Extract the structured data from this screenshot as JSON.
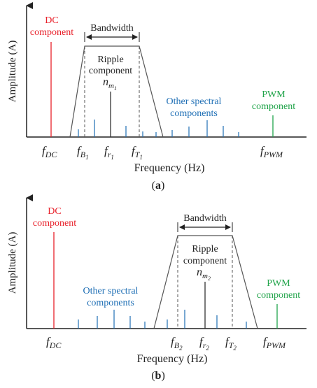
{
  "colors": {
    "dc": "#e8202a",
    "blue": "#1f6fb5",
    "green": "#21a44a",
    "black": "#222222",
    "gray": "#444444"
  },
  "panels": [
    {
      "id": "a",
      "caption": "a",
      "ylabel": "Amplitude (A)",
      "xlabel": "Frequency (Hz)",
      "bandwidth_label": "Bandwidth",
      "labels": {
        "dc": [
          "DC",
          "component"
        ],
        "ripple": [
          "Ripple",
          "component"
        ],
        "ripple_symbol": {
          "base": "n",
          "sub": "m",
          "subsub": "1"
        },
        "other": [
          "Other spectral",
          "components"
        ],
        "pwm": [
          "PWM",
          "component"
        ]
      },
      "ticks": [
        {
          "base": "f",
          "sub": "DC"
        },
        {
          "base": "f",
          "sub": "B",
          "subsub": "1"
        },
        {
          "base": "f",
          "sub": "r",
          "subsub": "1"
        },
        {
          "base": "f",
          "sub": "T",
          "subsub": "1"
        },
        {
          "base": "f",
          "sub": "PWM"
        }
      ]
    },
    {
      "id": "b",
      "caption": "b",
      "ylabel": "Amplitude (A)",
      "xlabel": "Frequency (Hz)",
      "bandwidth_label": "Bandwidth",
      "labels": {
        "dc": [
          "DC",
          "component"
        ],
        "ripple": [
          "Ripple",
          "component"
        ],
        "ripple_symbol": {
          "base": "n",
          "sub": "m",
          "subsub": "2"
        },
        "other": [
          "Other spectral",
          "components"
        ],
        "pwm": [
          "PWM",
          "component"
        ]
      },
      "ticks": [
        {
          "base": "f",
          "sub": "DC"
        },
        {
          "base": "f",
          "sub": "B",
          "subsub": "2"
        },
        {
          "base": "f",
          "sub": "r",
          "subsub": "2"
        },
        {
          "base": "f",
          "sub": "T",
          "subsub": "2"
        },
        {
          "base": "f",
          "sub": "PWM"
        }
      ]
    }
  ]
}
